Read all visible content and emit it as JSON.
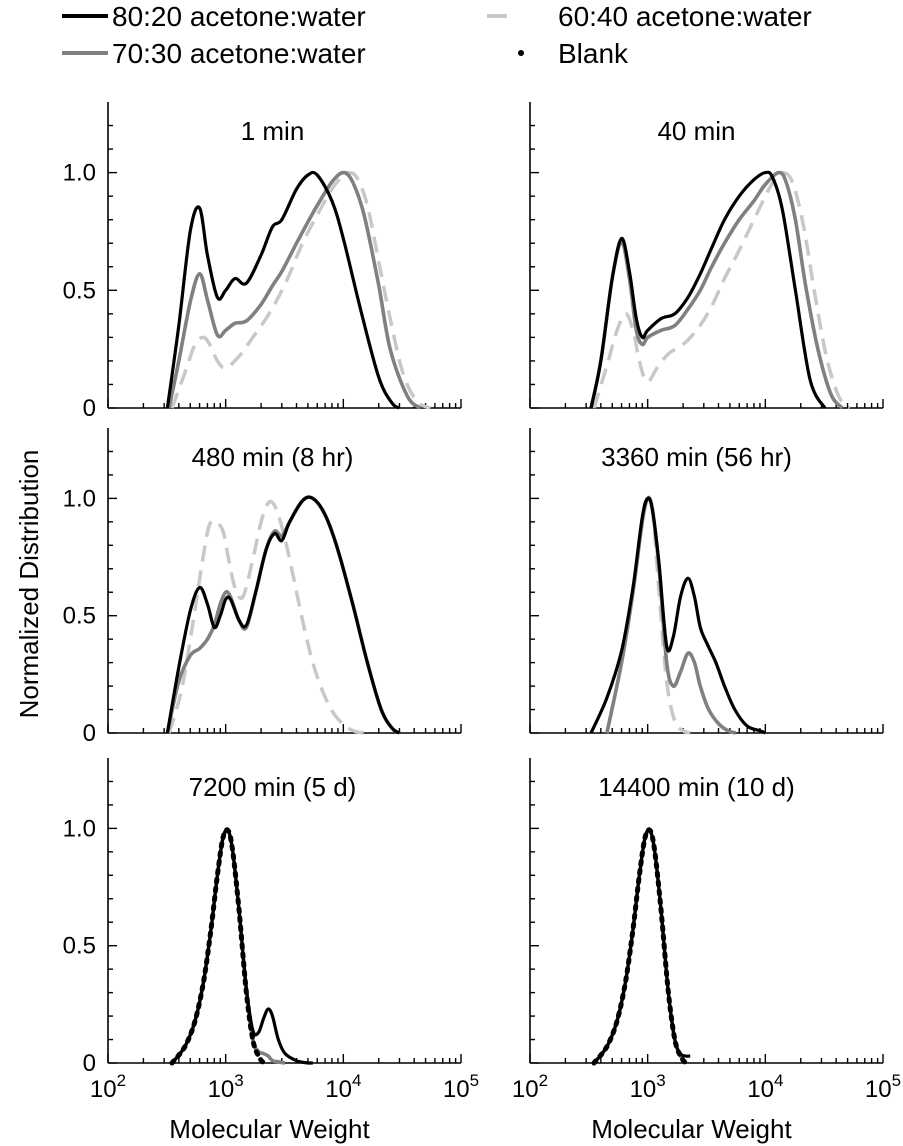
{
  "legend": {
    "items": [
      {
        "key": "s80",
        "label": "80:20 acetone:water",
        "style": "solid",
        "color": "#000000"
      },
      {
        "key": "s70",
        "label": "70:30 acetone:water",
        "style": "solid",
        "color": "#808080"
      },
      {
        "key": "s60",
        "label": "60:40 acetone:water",
        "style": "dashed",
        "color": "#c8c8c8"
      },
      {
        "key": "blank",
        "label": "Blank",
        "style": "dotted",
        "color": "#000000"
      }
    ]
  },
  "ylabel": "Normalized Distribution",
  "xlabel": "Molecular Weight",
  "yticks": [
    {
      "value": 0,
      "label": "0"
    },
    {
      "value": 0.5,
      "label": "0.5"
    },
    {
      "value": 1.0,
      "label": "1.0"
    }
  ],
  "xticks": [
    {
      "base": "10",
      "exp": "2",
      "value": 100
    },
    {
      "base": "10",
      "exp": "3",
      "value": 1000
    },
    {
      "base": "10",
      "exp": "4",
      "value": 10000
    },
    {
      "base": "10",
      "exp": "5",
      "value": 100000
    }
  ],
  "chart_data": [
    {
      "type": "line",
      "title": "1 min",
      "xscale": "log",
      "xlim": [
        100,
        100000
      ],
      "ylim": [
        0,
        1.3
      ],
      "series": [
        {
          "key": "s80",
          "x": [
            320,
            400,
            500,
            600,
            700,
            850,
            1000,
            1200,
            1500,
            2000,
            2500,
            3000,
            4000,
            5000,
            6000,
            8000,
            10000,
            14000,
            20000,
            26000,
            30000
          ],
          "y": [
            0.0,
            0.35,
            0.75,
            0.85,
            0.65,
            0.47,
            0.5,
            0.55,
            0.53,
            0.65,
            0.77,
            0.8,
            0.93,
            0.99,
            0.99,
            0.88,
            0.72,
            0.42,
            0.13,
            0.02,
            0.0
          ]
        },
        {
          "key": "s70",
          "x": [
            330,
            400,
            500,
            600,
            700,
            850,
            1000,
            1200,
            1500,
            2000,
            2500,
            3000,
            4000,
            5000,
            6000,
            8000,
            10000,
            12000,
            15000,
            20000,
            25000,
            35000,
            45000
          ],
          "y": [
            0.0,
            0.2,
            0.45,
            0.57,
            0.46,
            0.31,
            0.33,
            0.36,
            0.37,
            0.44,
            0.52,
            0.58,
            0.7,
            0.79,
            0.86,
            0.96,
            1.0,
            0.96,
            0.82,
            0.52,
            0.25,
            0.05,
            0.0
          ]
        },
        {
          "key": "s60",
          "x": [
            350,
            450,
            550,
            650,
            750,
            850,
            1000,
            1300,
            1700,
            2200,
            2800,
            3500,
            4500,
            6000,
            8000,
            10000,
            11000,
            13000,
            16000,
            20000,
            25000,
            32000,
            42000,
            55000
          ],
          "y": [
            0.0,
            0.15,
            0.27,
            0.3,
            0.26,
            0.2,
            0.17,
            0.22,
            0.3,
            0.38,
            0.47,
            0.57,
            0.7,
            0.82,
            0.93,
            0.99,
            1.0,
            0.98,
            0.86,
            0.62,
            0.38,
            0.15,
            0.03,
            0.0
          ]
        }
      ]
    },
    {
      "type": "line",
      "title": "40 min",
      "xscale": "log",
      "xlim": [
        100,
        100000
      ],
      "ylim": [
        0,
        1.3
      ],
      "series": [
        {
          "key": "s80",
          "x": [
            330,
            400,
            500,
            600,
            700,
            800,
            900,
            1000,
            1300,
            1700,
            2200,
            2800,
            3500,
            4500,
            6000,
            8000,
            10000,
            11500,
            14000,
            18000,
            24000,
            32000
          ],
          "y": [
            0.0,
            0.2,
            0.55,
            0.72,
            0.58,
            0.38,
            0.3,
            0.33,
            0.38,
            0.4,
            0.47,
            0.57,
            0.68,
            0.8,
            0.9,
            0.97,
            1.0,
            0.98,
            0.84,
            0.5,
            0.12,
            0.0
          ]
        },
        {
          "key": "s70",
          "x": [
            330,
            400,
            500,
            600,
            700,
            800,
            900,
            1000,
            1300,
            1700,
            2200,
            2800,
            3500,
            4500,
            6000,
            8000,
            10000,
            13000,
            15000,
            18000,
            22000,
            28000,
            36000,
            45000
          ],
          "y": [
            0.0,
            0.2,
            0.55,
            0.7,
            0.55,
            0.33,
            0.27,
            0.3,
            0.33,
            0.35,
            0.42,
            0.5,
            0.6,
            0.7,
            0.8,
            0.88,
            0.95,
            1.0,
            0.96,
            0.8,
            0.52,
            0.25,
            0.06,
            0.0
          ]
        },
        {
          "key": "s60",
          "x": [
            350,
            450,
            550,
            650,
            750,
            850,
            950,
            1050,
            1200,
            1500,
            2000,
            2600,
            3400,
            4500,
            6000,
            8000,
            10000,
            12000,
            14000,
            17000,
            21000,
            26000,
            33000,
            42000,
            52000
          ],
          "y": [
            0.0,
            0.18,
            0.33,
            0.4,
            0.33,
            0.2,
            0.12,
            0.12,
            0.17,
            0.23,
            0.27,
            0.33,
            0.42,
            0.55,
            0.67,
            0.8,
            0.9,
            0.97,
            1.0,
            0.96,
            0.78,
            0.5,
            0.22,
            0.05,
            0.0
          ]
        }
      ]
    },
    {
      "type": "line",
      "title": "480 min (8 hr)",
      "xscale": "log",
      "xlim": [
        100,
        100000
      ],
      "ylim": [
        0,
        1.3
      ],
      "series": [
        {
          "key": "s80",
          "x": [
            320,
            400,
            500,
            600,
            700,
            800,
            900,
            1000,
            1100,
            1300,
            1500,
            1800,
            2200,
            2600,
            3000,
            3500,
            4500,
            5500,
            7000,
            9000,
            12000,
            16000,
            21000,
            26000,
            30000
          ],
          "y": [
            0.0,
            0.28,
            0.52,
            0.62,
            0.55,
            0.45,
            0.5,
            0.57,
            0.57,
            0.48,
            0.46,
            0.6,
            0.78,
            0.85,
            0.82,
            0.9,
            0.99,
            1.0,
            0.93,
            0.78,
            0.55,
            0.3,
            0.1,
            0.02,
            0.0
          ]
        },
        {
          "key": "s70",
          "x": [
            320,
            400,
            500,
            600,
            700,
            800,
            900,
            1000,
            1100,
            1300,
            1500,
            1800,
            2200,
            2600,
            3000,
            3500,
            4500,
            5500,
            7000,
            9000,
            12000,
            16000,
            21000,
            26000,
            30000
          ],
          "y": [
            0.0,
            0.22,
            0.33,
            0.36,
            0.4,
            0.46,
            0.55,
            0.6,
            0.58,
            0.48,
            0.45,
            0.6,
            0.78,
            0.86,
            0.84,
            0.9,
            0.99,
            1.0,
            0.93,
            0.78,
            0.55,
            0.3,
            0.1,
            0.02,
            0.0
          ]
        },
        {
          "key": "s60",
          "x": [
            330,
            420,
            520,
            620,
            720,
            820,
            950,
            1050,
            1200,
            1400,
            1700,
            2000,
            2300,
            2600,
            3000,
            3500,
            4200,
            5000,
            6000,
            7500,
            9000,
            11000,
            13000,
            15000
          ],
          "y": [
            0.0,
            0.18,
            0.45,
            0.7,
            0.88,
            0.9,
            0.86,
            0.75,
            0.62,
            0.58,
            0.74,
            0.9,
            0.98,
            0.97,
            0.88,
            0.74,
            0.55,
            0.38,
            0.24,
            0.12,
            0.06,
            0.02,
            0.005,
            0.0
          ]
        }
      ]
    },
    {
      "type": "line",
      "title": "3360 min (56 hr)",
      "xscale": "log",
      "xlim": [
        100,
        100000
      ],
      "ylim": [
        0,
        1.3
      ],
      "series": [
        {
          "key": "s80",
          "x": [
            330,
            450,
            600,
            750,
            900,
            1000,
            1100,
            1250,
            1450,
            1650,
            1900,
            2200,
            2500,
            2800,
            3200,
            3800,
            4500,
            5500,
            7000,
            9000,
            10000
          ],
          "y": [
            0.0,
            0.15,
            0.35,
            0.62,
            0.92,
            1.0,
            0.95,
            0.72,
            0.37,
            0.41,
            0.58,
            0.66,
            0.58,
            0.45,
            0.38,
            0.3,
            0.2,
            0.1,
            0.03,
            0.01,
            0.0
          ]
        },
        {
          "key": "s70",
          "x": [
            450,
            600,
            750,
            900,
            1000,
            1100,
            1250,
            1450,
            1650,
            1900,
            2200,
            2500,
            2800,
            3300,
            4000,
            4800,
            5600
          ],
          "y": [
            0.0,
            0.3,
            0.6,
            0.9,
            1.0,
            0.95,
            0.7,
            0.3,
            0.2,
            0.26,
            0.34,
            0.3,
            0.2,
            0.1,
            0.04,
            0.01,
            0.0
          ]
        },
        {
          "key": "s60",
          "x": [
            450,
            600,
            750,
            900,
            1000,
            1100,
            1250,
            1450,
            1700,
            2000,
            2300
          ],
          "y": [
            0.0,
            0.3,
            0.6,
            0.9,
            1.0,
            0.95,
            0.6,
            0.22,
            0.05,
            0.01,
            0.0
          ]
        }
      ]
    },
    {
      "type": "line",
      "title": "7200 min (5 d)",
      "xscale": "log",
      "xlim": [
        100,
        100000
      ],
      "ylim": [
        0,
        1.3
      ],
      "series": [
        {
          "key": "s80",
          "x": [
            350,
            450,
            550,
            650,
            750,
            850,
            950,
            1050,
            1150,
            1300,
            1500,
            1700,
            1900,
            2100,
            2300,
            2500,
            2800,
            3200,
            4000,
            5000,
            5500
          ],
          "y": [
            0.0,
            0.07,
            0.18,
            0.35,
            0.57,
            0.8,
            0.96,
            0.99,
            0.9,
            0.65,
            0.32,
            0.14,
            0.13,
            0.19,
            0.23,
            0.2,
            0.1,
            0.04,
            0.01,
            0.0,
            0.0
          ]
        },
        {
          "key": "s70",
          "x": [
            350,
            450,
            550,
            650,
            750,
            850,
            950,
            1050,
            1150,
            1300,
            1500,
            1700,
            1900,
            2100,
            2300,
            2500,
            2800,
            3200
          ],
          "y": [
            0.0,
            0.07,
            0.18,
            0.35,
            0.57,
            0.8,
            0.96,
            0.99,
            0.9,
            0.65,
            0.3,
            0.1,
            0.05,
            0.04,
            0.03,
            0.01,
            0.005,
            0.0
          ]
        },
        {
          "key": "s60",
          "x": [
            350,
            450,
            550,
            650,
            750,
            850,
            950,
            1050,
            1150,
            1300,
            1500,
            1700,
            1900,
            2100
          ],
          "y": [
            0.0,
            0.07,
            0.18,
            0.35,
            0.57,
            0.8,
            0.96,
            0.99,
            0.9,
            0.65,
            0.3,
            0.1,
            0.03,
            0.0
          ]
        },
        {
          "key": "blank",
          "x": [
            350,
            450,
            550,
            650,
            750,
            850,
            950,
            1050,
            1150,
            1300,
            1500,
            1700,
            1900,
            2100
          ],
          "y": [
            0.0,
            0.07,
            0.18,
            0.35,
            0.57,
            0.8,
            0.96,
            0.99,
            0.9,
            0.65,
            0.3,
            0.1,
            0.03,
            0.0
          ]
        }
      ]
    },
    {
      "type": "line",
      "title": "14400 min (10 d)",
      "xscale": "log",
      "xlim": [
        100,
        100000
      ],
      "ylim": [
        0,
        1.3
      ],
      "series": [
        {
          "key": "s80",
          "x": [
            350,
            450,
            550,
            650,
            750,
            850,
            950,
            1050,
            1150,
            1300,
            1500,
            1700,
            1900,
            2100,
            2300
          ],
          "y": [
            0.0,
            0.07,
            0.18,
            0.35,
            0.57,
            0.8,
            0.96,
            0.99,
            0.9,
            0.65,
            0.3,
            0.1,
            0.04,
            0.03,
            0.03
          ]
        },
        {
          "key": "s70",
          "x": [
            350,
            450,
            550,
            650,
            750,
            850,
            950,
            1050,
            1150,
            1300,
            1500,
            1700,
            1900,
            2100
          ],
          "y": [
            0.0,
            0.07,
            0.18,
            0.35,
            0.57,
            0.8,
            0.96,
            0.99,
            0.9,
            0.65,
            0.3,
            0.1,
            0.03,
            0.0
          ]
        },
        {
          "key": "s60",
          "x": [
            350,
            450,
            550,
            650,
            750,
            850,
            950,
            1050,
            1150,
            1300,
            1500,
            1700,
            1900,
            2100
          ],
          "y": [
            0.0,
            0.07,
            0.18,
            0.35,
            0.57,
            0.8,
            0.96,
            0.99,
            0.9,
            0.65,
            0.3,
            0.1,
            0.03,
            0.0
          ]
        },
        {
          "key": "blank",
          "x": [
            350,
            450,
            550,
            650,
            750,
            850,
            950,
            1050,
            1150,
            1300,
            1500,
            1700,
            1900,
            2100
          ],
          "y": [
            0.0,
            0.07,
            0.18,
            0.35,
            0.57,
            0.8,
            0.96,
            0.99,
            0.9,
            0.65,
            0.3,
            0.1,
            0.03,
            0.0
          ]
        }
      ]
    }
  ]
}
